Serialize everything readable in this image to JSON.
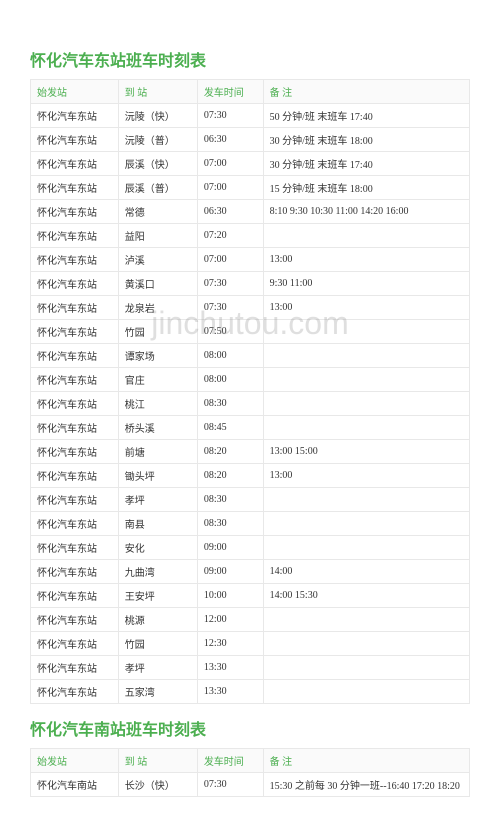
{
  "watermark": "jinchutou.com",
  "tables": [
    {
      "title": "怀化汽车东站班车时刻表",
      "headers": [
        "始发站",
        "到 站",
        "发车时间",
        "备 注"
      ],
      "rows": [
        [
          "怀化汽车东站",
          "沅陵（快）",
          "07:30",
          "50 分钟/班 末班车 17:40"
        ],
        [
          "怀化汽车东站",
          "沅陵（普）",
          "06:30",
          "30 分钟/班 末班车 18:00"
        ],
        [
          "怀化汽车东站",
          "辰溪（快）",
          "07:00",
          "30 分钟/班 末班车 17:40"
        ],
        [
          "怀化汽车东站",
          "辰溪（普）",
          "07:00",
          "15 分钟/班 末班车 18:00"
        ],
        [
          "怀化汽车东站",
          "常德",
          "06:30",
          "8:10 9:30 10:30  11:00 14:20 16:00"
        ],
        [
          "怀化汽车东站",
          "益阳",
          "07:20",
          ""
        ],
        [
          "怀化汽车东站",
          "泸溪",
          "07:00",
          "13:00"
        ],
        [
          "怀化汽车东站",
          "黄溪口",
          "07:30",
          "9:30 11:00"
        ],
        [
          "怀化汽车东站",
          "龙泉岩",
          "07:30",
          "13:00"
        ],
        [
          "怀化汽车东站",
          "竹园",
          "07:50",
          ""
        ],
        [
          "怀化汽车东站",
          "谭家场",
          "08:00",
          ""
        ],
        [
          "怀化汽车东站",
          "官庄",
          "08:00",
          ""
        ],
        [
          "怀化汽车东站",
          "桃江",
          "08:30",
          ""
        ],
        [
          "怀化汽车东站",
          "桥头溪",
          "08:45",
          ""
        ],
        [
          "怀化汽车东站",
          "前塘",
          "08:20",
          "13:00 15:00"
        ],
        [
          "怀化汽车东站",
          "锄头坪",
          "08:20",
          "13:00"
        ],
        [
          "怀化汽车东站",
          "孝坪",
          "08:30",
          ""
        ],
        [
          "怀化汽车东站",
          "南县",
          "08:30",
          ""
        ],
        [
          "怀化汽车东站",
          "安化",
          "09:00",
          ""
        ],
        [
          "怀化汽车东站",
          "九曲湾",
          "09:00",
          "14:00"
        ],
        [
          "怀化汽车东站",
          "王安坪",
          "10:00",
          "14:00 15:30"
        ],
        [
          "怀化汽车东站",
          "桃源",
          "12:00",
          ""
        ],
        [
          "怀化汽车东站",
          "竹园",
          "12:30",
          ""
        ],
        [
          "怀化汽车东站",
          "孝坪",
          "13:30",
          ""
        ],
        [
          "怀化汽车东站",
          "五家湾",
          "13:30",
          ""
        ]
      ]
    },
    {
      "title": "怀化汽车南站班车时刻表",
      "headers": [
        "始发站",
        "到 站",
        "发车时间",
        "备 注"
      ],
      "rows": [
        [
          "怀化汽车南站",
          "长沙（快）",
          "07:30",
          "15:30 之前每 30 分钟一班--16:40 17:20 18:20"
        ]
      ]
    }
  ],
  "styling": {
    "title_color": "#4CAF50",
    "header_color": "#4CAF50",
    "border_color": "#e8e8e8",
    "text_color": "#333333",
    "background": "#ffffff",
    "title_fontsize": 16,
    "body_fontsize": 10
  }
}
